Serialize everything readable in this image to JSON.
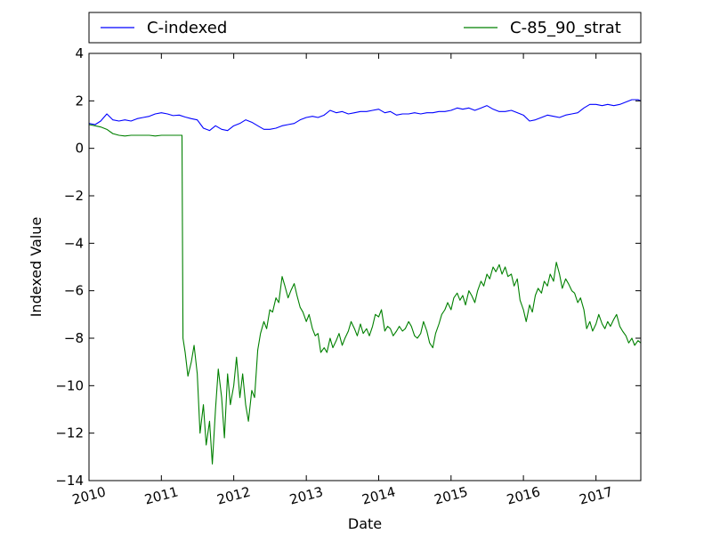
{
  "chart_data": {
    "type": "line",
    "title": "",
    "xlabel": "Date",
    "ylabel": "Indexed Value",
    "xlim": [
      "2010-01-01",
      "2017-08-15"
    ],
    "ylim": [
      -14,
      4
    ],
    "x_ticks": [
      "2010",
      "2011",
      "2012",
      "2013",
      "2014",
      "2015",
      "2016",
      "2017"
    ],
    "y_ticks": [
      4,
      2,
      0,
      -2,
      -4,
      -6,
      -8,
      -10,
      -12,
      -14
    ],
    "y_tick_labels": [
      "4",
      "2",
      "0",
      "−2",
      "−4",
      "−6",
      "−8",
      "−10",
      "−12",
      "−14"
    ],
    "grid": false,
    "legend_position": "top, above plot",
    "series": [
      {
        "name": "C-indexed",
        "color": "#0000ff",
        "points": [
          [
            "2010-01-01",
            1.05
          ],
          [
            "2010-02-01",
            1.0
          ],
          [
            "2010-03-01",
            1.15
          ],
          [
            "2010-04-01",
            1.45
          ],
          [
            "2010-05-01",
            1.2
          ],
          [
            "2010-06-01",
            1.15
          ],
          [
            "2010-07-01",
            1.2
          ],
          [
            "2010-08-01",
            1.15
          ],
          [
            "2010-09-01",
            1.25
          ],
          [
            "2010-10-01",
            1.3
          ],
          [
            "2010-11-01",
            1.35
          ],
          [
            "2010-12-01",
            1.45
          ],
          [
            "2011-01-01",
            1.5
          ],
          [
            "2011-02-01",
            1.45
          ],
          [
            "2011-03-01",
            1.38
          ],
          [
            "2011-04-01",
            1.4
          ],
          [
            "2011-05-01",
            1.32
          ],
          [
            "2011-06-01",
            1.25
          ],
          [
            "2011-07-01",
            1.2
          ],
          [
            "2011-08-01",
            0.85
          ],
          [
            "2011-09-01",
            0.75
          ],
          [
            "2011-10-01",
            0.95
          ],
          [
            "2011-11-01",
            0.8
          ],
          [
            "2011-12-01",
            0.75
          ],
          [
            "2012-01-01",
            0.95
          ],
          [
            "2012-02-01",
            1.05
          ],
          [
            "2012-03-01",
            1.2
          ],
          [
            "2012-04-01",
            1.1
          ],
          [
            "2012-05-01",
            0.95
          ],
          [
            "2012-06-01",
            0.8
          ],
          [
            "2012-07-01",
            0.8
          ],
          [
            "2012-08-01",
            0.85
          ],
          [
            "2012-09-01",
            0.95
          ],
          [
            "2012-10-01",
            1.0
          ],
          [
            "2012-11-01",
            1.05
          ],
          [
            "2012-12-01",
            1.2
          ],
          [
            "2013-01-01",
            1.3
          ],
          [
            "2013-02-01",
            1.35
          ],
          [
            "2013-03-01",
            1.3
          ],
          [
            "2013-04-01",
            1.4
          ],
          [
            "2013-05-01",
            1.6
          ],
          [
            "2013-06-01",
            1.5
          ],
          [
            "2013-07-01",
            1.55
          ],
          [
            "2013-08-01",
            1.45
          ],
          [
            "2013-09-01",
            1.5
          ],
          [
            "2013-10-01",
            1.55
          ],
          [
            "2013-11-01",
            1.55
          ],
          [
            "2013-12-01",
            1.6
          ],
          [
            "2014-01-01",
            1.65
          ],
          [
            "2014-02-01",
            1.5
          ],
          [
            "2014-03-01",
            1.55
          ],
          [
            "2014-04-01",
            1.4
          ],
          [
            "2014-05-01",
            1.45
          ],
          [
            "2014-06-01",
            1.45
          ],
          [
            "2014-07-01",
            1.5
          ],
          [
            "2014-08-01",
            1.45
          ],
          [
            "2014-09-01",
            1.5
          ],
          [
            "2014-10-01",
            1.5
          ],
          [
            "2014-11-01",
            1.55
          ],
          [
            "2014-12-01",
            1.55
          ],
          [
            "2015-01-01",
            1.6
          ],
          [
            "2015-02-01",
            1.7
          ],
          [
            "2015-03-01",
            1.65
          ],
          [
            "2015-04-01",
            1.7
          ],
          [
            "2015-05-01",
            1.6
          ],
          [
            "2015-06-01",
            1.7
          ],
          [
            "2015-07-01",
            1.8
          ],
          [
            "2015-08-01",
            1.65
          ],
          [
            "2015-09-01",
            1.55
          ],
          [
            "2015-10-01",
            1.55
          ],
          [
            "2015-11-01",
            1.6
          ],
          [
            "2015-12-01",
            1.5
          ],
          [
            "2016-01-01",
            1.4
          ],
          [
            "2016-02-01",
            1.15
          ],
          [
            "2016-03-01",
            1.2
          ],
          [
            "2016-04-01",
            1.3
          ],
          [
            "2016-05-01",
            1.4
          ],
          [
            "2016-06-01",
            1.35
          ],
          [
            "2016-07-01",
            1.3
          ],
          [
            "2016-08-01",
            1.4
          ],
          [
            "2016-09-01",
            1.45
          ],
          [
            "2016-10-01",
            1.5
          ],
          [
            "2016-11-01",
            1.7
          ],
          [
            "2016-12-01",
            1.85
          ],
          [
            "2017-01-01",
            1.85
          ],
          [
            "2017-02-01",
            1.8
          ],
          [
            "2017-03-01",
            1.85
          ],
          [
            "2017-04-01",
            1.8
          ],
          [
            "2017-05-01",
            1.85
          ],
          [
            "2017-06-01",
            1.95
          ],
          [
            "2017-07-01",
            2.05
          ],
          [
            "2017-08-01",
            2.05
          ],
          [
            "2017-08-15",
            2.0
          ]
        ]
      },
      {
        "name": "C-85_90_strat",
        "color": "#008000",
        "points": [
          [
            "2010-01-01",
            1.0
          ],
          [
            "2010-02-01",
            0.95
          ],
          [
            "2010-03-01",
            0.9
          ],
          [
            "2010-04-01",
            0.8
          ],
          [
            "2010-05-01",
            0.62
          ],
          [
            "2010-06-01",
            0.55
          ],
          [
            "2010-07-01",
            0.52
          ],
          [
            "2010-08-01",
            0.55
          ],
          [
            "2010-09-01",
            0.55
          ],
          [
            "2010-10-01",
            0.55
          ],
          [
            "2010-11-01",
            0.55
          ],
          [
            "2010-12-01",
            0.52
          ],
          [
            "2011-01-01",
            0.55
          ],
          [
            "2011-02-01",
            0.55
          ],
          [
            "2011-03-01",
            0.55
          ],
          [
            "2011-04-01",
            0.55
          ],
          [
            "2011-04-15",
            0.55
          ],
          [
            "2011-04-20",
            -8.0
          ],
          [
            "2011-05-01",
            -8.6
          ],
          [
            "2011-05-15",
            -9.6
          ],
          [
            "2011-06-01",
            -9.0
          ],
          [
            "2011-06-15",
            -8.3
          ],
          [
            "2011-07-01",
            -9.5
          ],
          [
            "2011-07-15",
            -12.0
          ],
          [
            "2011-08-01",
            -10.8
          ],
          [
            "2011-08-15",
            -12.5
          ],
          [
            "2011-09-01",
            -11.5
          ],
          [
            "2011-09-15",
            -13.3
          ],
          [
            "2011-10-01",
            -11.0
          ],
          [
            "2011-10-15",
            -9.3
          ],
          [
            "2011-11-01",
            -10.5
          ],
          [
            "2011-11-15",
            -12.2
          ],
          [
            "2011-12-01",
            -9.5
          ],
          [
            "2011-12-15",
            -10.8
          ],
          [
            "2012-01-01",
            -10.0
          ],
          [
            "2012-01-15",
            -8.8
          ],
          [
            "2012-02-01",
            -10.5
          ],
          [
            "2012-02-15",
            -9.5
          ],
          [
            "2012-03-01",
            -10.8
          ],
          [
            "2012-03-15",
            -11.5
          ],
          [
            "2012-04-01",
            -10.2
          ],
          [
            "2012-04-15",
            -10.5
          ],
          [
            "2012-05-01",
            -8.5
          ],
          [
            "2012-05-15",
            -7.8
          ],
          [
            "2012-06-01",
            -7.3
          ],
          [
            "2012-06-15",
            -7.6
          ],
          [
            "2012-07-01",
            -6.8
          ],
          [
            "2012-07-15",
            -6.9
          ],
          [
            "2012-08-01",
            -6.3
          ],
          [
            "2012-08-15",
            -6.5
          ],
          [
            "2012-09-01",
            -5.4
          ],
          [
            "2012-09-15",
            -5.8
          ],
          [
            "2012-10-01",
            -6.3
          ],
          [
            "2012-10-15",
            -6.0
          ],
          [
            "2012-11-01",
            -5.7
          ],
          [
            "2012-11-15",
            -6.2
          ],
          [
            "2012-12-01",
            -6.7
          ],
          [
            "2012-12-15",
            -6.9
          ],
          [
            "2013-01-01",
            -7.3
          ],
          [
            "2013-01-15",
            -7.0
          ],
          [
            "2013-02-01",
            -7.6
          ],
          [
            "2013-02-15",
            -7.9
          ],
          [
            "2013-03-01",
            -7.8
          ],
          [
            "2013-03-15",
            -8.6
          ],
          [
            "2013-04-01",
            -8.4
          ],
          [
            "2013-04-15",
            -8.6
          ],
          [
            "2013-05-01",
            -8.0
          ],
          [
            "2013-05-15",
            -8.4
          ],
          [
            "2013-06-01",
            -8.1
          ],
          [
            "2013-06-15",
            -7.8
          ],
          [
            "2013-07-01",
            -8.3
          ],
          [
            "2013-07-15",
            -8.0
          ],
          [
            "2013-08-01",
            -7.7
          ],
          [
            "2013-08-15",
            -7.3
          ],
          [
            "2013-09-01",
            -7.6
          ],
          [
            "2013-09-15",
            -7.9
          ],
          [
            "2013-10-01",
            -7.4
          ],
          [
            "2013-10-15",
            -7.8
          ],
          [
            "2013-11-01",
            -7.6
          ],
          [
            "2013-11-15",
            -7.9
          ],
          [
            "2013-12-01",
            -7.5
          ],
          [
            "2013-12-15",
            -7.0
          ],
          [
            "2014-01-01",
            -7.1
          ],
          [
            "2014-01-15",
            -6.8
          ],
          [
            "2014-02-01",
            -7.7
          ],
          [
            "2014-02-15",
            -7.5
          ],
          [
            "2014-03-01",
            -7.6
          ],
          [
            "2014-03-15",
            -7.9
          ],
          [
            "2014-04-01",
            -7.7
          ],
          [
            "2014-04-15",
            -7.5
          ],
          [
            "2014-05-01",
            -7.7
          ],
          [
            "2014-05-15",
            -7.6
          ],
          [
            "2014-06-01",
            -7.3
          ],
          [
            "2014-06-15",
            -7.5
          ],
          [
            "2014-07-01",
            -7.9
          ],
          [
            "2014-07-15",
            -8.0
          ],
          [
            "2014-08-01",
            -7.8
          ],
          [
            "2014-08-15",
            -7.3
          ],
          [
            "2014-09-01",
            -7.7
          ],
          [
            "2014-09-15",
            -8.2
          ],
          [
            "2014-10-01",
            -8.4
          ],
          [
            "2014-10-15",
            -7.8
          ],
          [
            "2014-11-01",
            -7.4
          ],
          [
            "2014-11-15",
            -7.0
          ],
          [
            "2014-12-01",
            -6.8
          ],
          [
            "2014-12-15",
            -6.5
          ],
          [
            "2015-01-01",
            -6.8
          ],
          [
            "2015-01-15",
            -6.3
          ],
          [
            "2015-02-01",
            -6.1
          ],
          [
            "2015-02-15",
            -6.4
          ],
          [
            "2015-03-01",
            -6.2
          ],
          [
            "2015-03-15",
            -6.6
          ],
          [
            "2015-04-01",
            -6.0
          ],
          [
            "2015-04-15",
            -6.2
          ],
          [
            "2015-05-01",
            -6.5
          ],
          [
            "2015-05-15",
            -6.0
          ],
          [
            "2015-06-01",
            -5.6
          ],
          [
            "2015-06-15",
            -5.8
          ],
          [
            "2015-07-01",
            -5.3
          ],
          [
            "2015-07-15",
            -5.5
          ],
          [
            "2015-08-01",
            -5.0
          ],
          [
            "2015-08-15",
            -5.2
          ],
          [
            "2015-09-01",
            -4.9
          ],
          [
            "2015-09-15",
            -5.3
          ],
          [
            "2015-10-01",
            -5.0
          ],
          [
            "2015-10-15",
            -5.4
          ],
          [
            "2015-11-01",
            -5.3
          ],
          [
            "2015-11-15",
            -5.8
          ],
          [
            "2015-12-01",
            -5.5
          ],
          [
            "2015-12-15",
            -6.4
          ],
          [
            "2016-01-01",
            -6.8
          ],
          [
            "2016-01-15",
            -7.3
          ],
          [
            "2016-02-01",
            -6.6
          ],
          [
            "2016-02-15",
            -6.9
          ],
          [
            "2016-03-01",
            -6.2
          ],
          [
            "2016-03-15",
            -5.9
          ],
          [
            "2016-04-01",
            -6.1
          ],
          [
            "2016-04-15",
            -5.6
          ],
          [
            "2016-05-01",
            -5.8
          ],
          [
            "2016-05-15",
            -5.3
          ],
          [
            "2016-06-01",
            -5.6
          ],
          [
            "2016-06-15",
            -4.8
          ],
          [
            "2016-07-01",
            -5.3
          ],
          [
            "2016-07-15",
            -5.9
          ],
          [
            "2016-08-01",
            -5.5
          ],
          [
            "2016-08-15",
            -5.7
          ],
          [
            "2016-09-01",
            -6.0
          ],
          [
            "2016-09-15",
            -6.1
          ],
          [
            "2016-10-01",
            -6.5
          ],
          [
            "2016-10-15",
            -6.3
          ],
          [
            "2016-11-01",
            -6.8
          ],
          [
            "2016-11-15",
            -7.6
          ],
          [
            "2016-12-01",
            -7.3
          ],
          [
            "2016-12-15",
            -7.7
          ],
          [
            "2017-01-01",
            -7.4
          ],
          [
            "2017-01-15",
            -7.0
          ],
          [
            "2017-02-01",
            -7.4
          ],
          [
            "2017-02-15",
            -7.6
          ],
          [
            "2017-03-01",
            -7.3
          ],
          [
            "2017-03-15",
            -7.5
          ],
          [
            "2017-04-01",
            -7.2
          ],
          [
            "2017-04-15",
            -7.0
          ],
          [
            "2017-05-01",
            -7.5
          ],
          [
            "2017-05-15",
            -7.7
          ],
          [
            "2017-06-01",
            -7.9
          ],
          [
            "2017-06-15",
            -8.2
          ],
          [
            "2017-07-01",
            -8.0
          ],
          [
            "2017-07-15",
            -8.3
          ],
          [
            "2017-08-01",
            -8.1
          ],
          [
            "2017-08-15",
            -8.2
          ]
        ]
      }
    ]
  }
}
